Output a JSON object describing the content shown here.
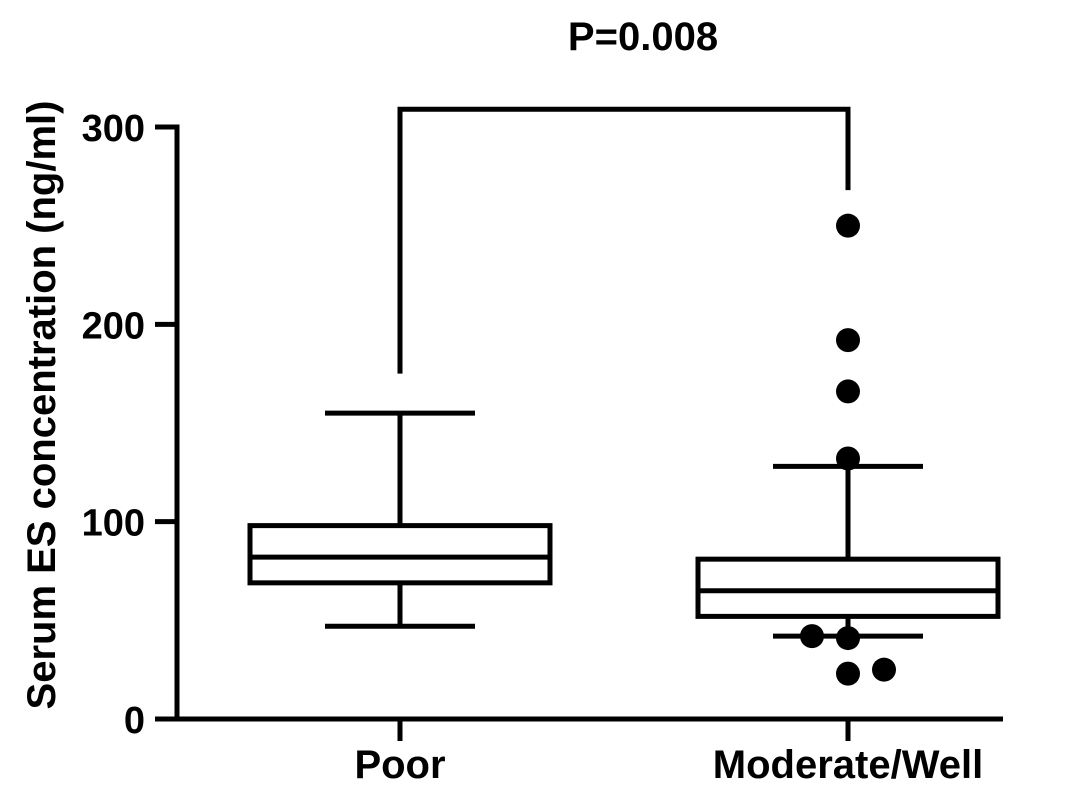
{
  "chart_data": {
    "type": "box",
    "title": "P=0.008",
    "xlabel": "",
    "ylabel": "Serum ES concentration  (ng/ml)",
    "ylim": [
      0,
      300
    ],
    "yticks": [
      "0",
      "100",
      "200",
      "300"
    ],
    "categories": [
      "Poor",
      "Moderate/Well"
    ],
    "boxes": [
      {
        "category": "Poor",
        "whisker_low": 47,
        "q1": 69,
        "median": 82,
        "q3": 98,
        "whisker_high": 155,
        "outliers": []
      },
      {
        "category": "Moderate/Well",
        "whisker_low": 42,
        "q1": 52,
        "median": 65,
        "q3": 81,
        "whisker_high": 128,
        "outliers": [
          250,
          192,
          166,
          132,
          42,
          41,
          23,
          25
        ]
      }
    ],
    "annotation": {
      "label": "P=0.008",
      "bracket_top": 309,
      "left_end": 175,
      "right_end": 268
    }
  }
}
